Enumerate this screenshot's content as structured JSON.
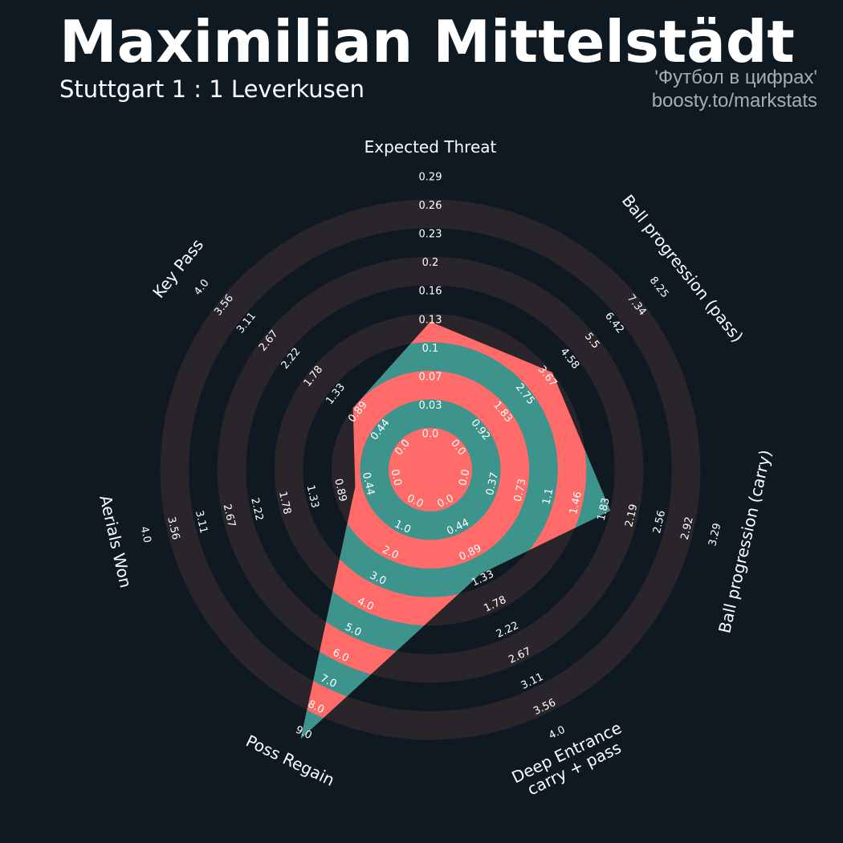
{
  "header": {
    "title": "Maximilian Mittelstädt",
    "subtitle": "Stuttgart 1 : 1 Leverkusen",
    "credit_line1": "'Футбол в цифрах'",
    "credit_line2": "boosty.to/markstats"
  },
  "colors": {
    "background": "#0f1921",
    "ring": "#2a242b",
    "band_coral": "#ff6b68",
    "band_teal": "#3d948d",
    "text": "#ffffff"
  },
  "chart_data": {
    "type": "radar",
    "axes": [
      {
        "label": "Expected Threat",
        "ticks": [
          "0.0",
          "0.03",
          "0.07",
          "0.1",
          "0.13",
          "0.16",
          "0.2",
          "0.23",
          "0.26",
          "0.29"
        ],
        "range": [
          0,
          0.29
        ],
        "value": 0.12
      },
      {
        "label": "Ball progression (pass)",
        "ticks": [
          "0.0",
          "0.92",
          "1.83",
          "2.75",
          "3.67",
          "4.58",
          "5.5",
          "6.42",
          "7.34",
          "8.25"
        ],
        "range": [
          0,
          8.25
        ],
        "value": 3.67
      },
      {
        "label": "Ball progression (carry)",
        "ticks": [
          "0.0",
          "0.37",
          "0.73",
          "1.1",
          "1.46",
          "1.83",
          "2.19",
          "2.56",
          "2.92",
          "3.29"
        ],
        "range": [
          0,
          3.29
        ],
        "value": 1.83
      },
      {
        "label": "Deep Entrance\ncarry + pass",
        "ticks": [
          "0.0",
          "0.44",
          "0.89",
          "1.33",
          "1.78",
          "2.22",
          "2.67",
          "3.11",
          "3.56",
          "4.0"
        ],
        "range": [
          0,
          4.0
        ],
        "value": 1.15
      },
      {
        "label": "Poss Regain",
        "ticks": [
          "0.0",
          "1.0",
          "2.0",
          "3.0",
          "4.0",
          "5.0",
          "6.0",
          "7.0",
          "8.0",
          "9.0"
        ],
        "range": [
          0,
          9.0
        ],
        "value": 9.0
      },
      {
        "label": "Aerials Won",
        "ticks": [
          "0.0",
          "0.44",
          "0.89",
          "1.33",
          "1.78",
          "2.22",
          "2.67",
          "3.11",
          "3.56",
          "4.0"
        ],
        "range": [
          0,
          4.0
        ],
        "value": 0.55
      },
      {
        "label": "Key Pass",
        "ticks": [
          "0.0",
          "0.44",
          "0.89",
          "1.33",
          "1.78",
          "2.22",
          "2.67",
          "3.11",
          "3.56",
          "4.0"
        ],
        "range": [
          0,
          4.0
        ],
        "value": 0.89
      }
    ]
  }
}
